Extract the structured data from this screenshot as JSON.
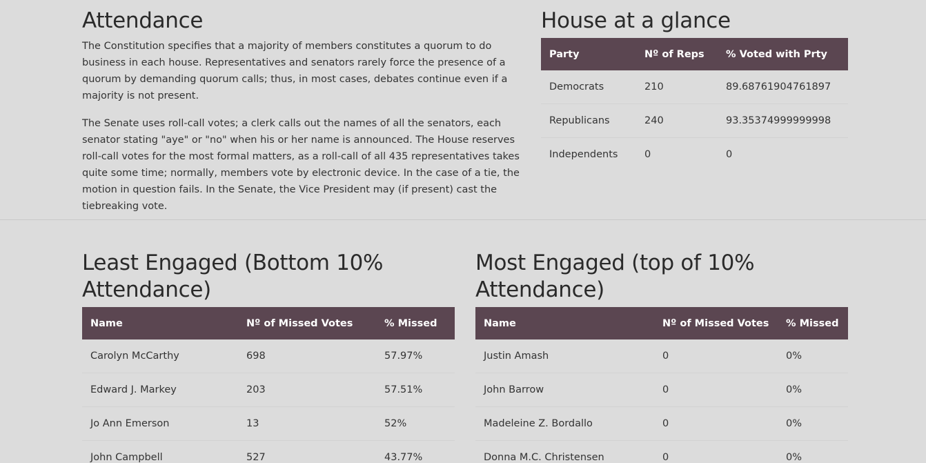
{
  "attendance": {
    "title": "Attendance",
    "paragraph1": "The Constitution specifies that a majority of members constitutes a quorum to do business in each house. Representatives and senators rarely force the presence of a quorum by demanding quorum calls; thus, in most cases, debates continue even if a majority is not present.",
    "paragraph2": "The Senate uses roll-call votes; a clerk calls out the names of all the senators, each senator stating \"aye\" or \"no\" when his or her name is announced. The House reserves roll-call votes for the most formal matters, as a roll-call of all 435 representatives takes quite some time; normally, members vote by electronic device. In the case of a tie, the motion in question fails. In the Senate, the Vice President may (if present) cast the tiebreaking vote."
  },
  "glance": {
    "title": "House at a glance",
    "headers": [
      "Party",
      "Nº of Reps",
      "% Voted with Prty"
    ],
    "rows": [
      [
        "Democrats",
        "210",
        "89.68761904761897"
      ],
      [
        "Republicans",
        "240",
        "93.35374999999998"
      ],
      [
        "Independents",
        "0",
        "0"
      ]
    ]
  },
  "least": {
    "title": "Least Engaged (Bottom 10% Attendance)",
    "headers": [
      "Name",
      "Nº of Missed Votes",
      "% Missed"
    ],
    "rows": [
      [
        "Carolyn McCarthy",
        "698",
        "57.97%"
      ],
      [
        "Edward J. Markey",
        "203",
        "57.51%"
      ],
      [
        "Jo Ann Emerson",
        "13",
        "52%"
      ],
      [
        "John Campbell",
        "527",
        "43.77%"
      ]
    ]
  },
  "most": {
    "title": "Most Engaged (top of 10% Attendance)",
    "headers": [
      "Name",
      "Nº of Missed Votes",
      "% Missed"
    ],
    "rows": [
      [
        "Justin Amash",
        "0",
        "0%"
      ],
      [
        "John Barrow",
        "0",
        "0%"
      ],
      [
        "Madeleine Z. Bordallo",
        "0",
        "0%"
      ],
      [
        "Donna M.C. Christensen",
        "0",
        "0%"
      ]
    ]
  },
  "colors": {
    "table_header_bg": "#5b4651",
    "page_bg": "#dcdcdc"
  }
}
